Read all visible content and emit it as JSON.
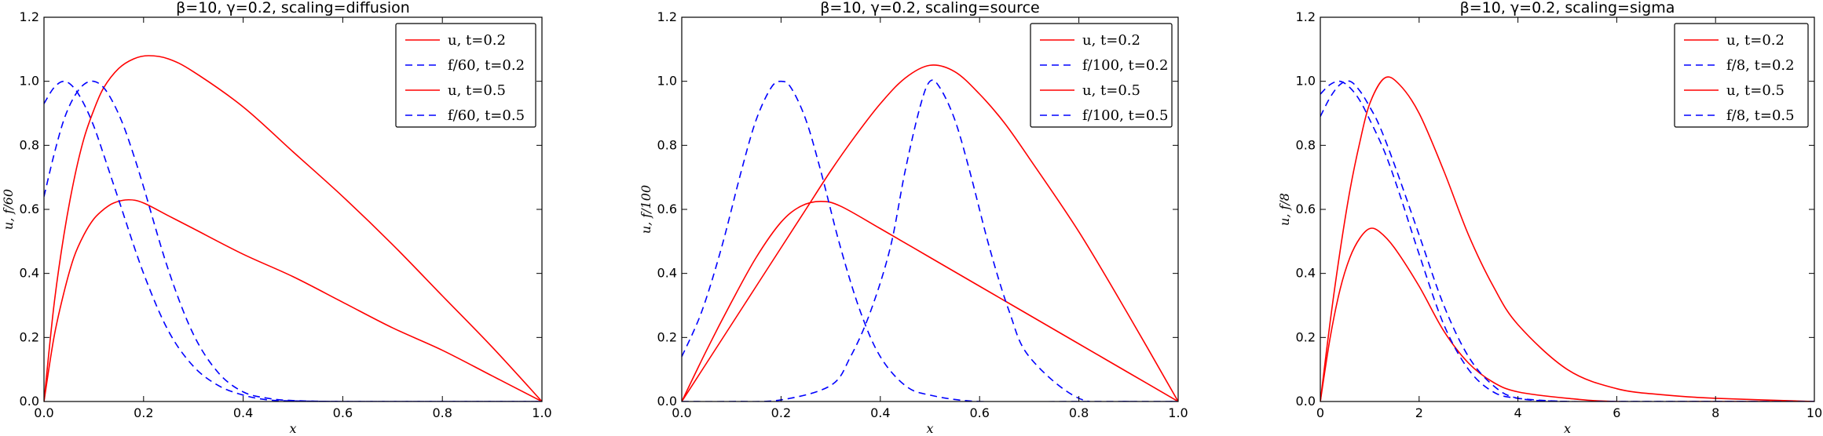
{
  "figure": {
    "background": "#ffffff"
  },
  "chart_data": [
    {
      "type": "line",
      "title": "β=10, γ=0.2, scaling=diffusion",
      "xlabel": "x",
      "ylabel": "u, f/60",
      "xlim": [
        0,
        1.0
      ],
      "ylim": [
        0,
        1.2
      ],
      "xticks": [
        "0.0",
        "0.2",
        "0.4",
        "0.6",
        "0.8",
        "1.0"
      ],
      "xtick_values": [
        0,
        0.2,
        0.4,
        0.6,
        0.8,
        1.0
      ],
      "yticks": [
        "0.0",
        "0.2",
        "0.4",
        "0.6",
        "0.8",
        "1.0",
        "1.2"
      ],
      "ytick_values": [
        0,
        0.2,
        0.4,
        0.6,
        0.8,
        1.0,
        1.2
      ],
      "grid": false,
      "legend": "top-right",
      "series": [
        {
          "name": "u, t=0.2",
          "color": "#ff0000",
          "dash": "solid",
          "x": [
            0,
            0.02,
            0.04,
            0.06,
            0.08,
            0.1,
            0.12,
            0.14,
            0.17,
            0.2,
            0.25,
            0.3,
            0.4,
            0.5,
            0.6,
            0.7,
            0.8,
            0.9,
            1.0
          ],
          "y": [
            0,
            0.2,
            0.34,
            0.45,
            0.52,
            0.57,
            0.6,
            0.62,
            0.63,
            0.62,
            0.58,
            0.54,
            0.46,
            0.39,
            0.31,
            0.23,
            0.16,
            0.08,
            0
          ]
        },
        {
          "name": "f/60, t=0.2",
          "color": "#0000ff",
          "dash": "dashed",
          "x": [
            0,
            0.02,
            0.04,
            0.06,
            0.08,
            0.1,
            0.12,
            0.15,
            0.2,
            0.25,
            0.3,
            0.35,
            0.4,
            0.45,
            0.5,
            0.6,
            0.8,
            1.0
          ],
          "y": [
            0.93,
            0.98,
            1.0,
            0.98,
            0.93,
            0.86,
            0.77,
            0.63,
            0.4,
            0.22,
            0.11,
            0.05,
            0.02,
            0.005,
            0.002,
            0,
            0,
            0
          ]
        },
        {
          "name": "u, t=0.5",
          "color": "#ff0000",
          "dash": "solid",
          "x": [
            0,
            0.02,
            0.04,
            0.06,
            0.08,
            0.1,
            0.12,
            0.15,
            0.18,
            0.21,
            0.25,
            0.3,
            0.4,
            0.5,
            0.6,
            0.7,
            0.8,
            0.9,
            1.0
          ],
          "y": [
            0,
            0.3,
            0.52,
            0.69,
            0.82,
            0.91,
            0.98,
            1.04,
            1.07,
            1.08,
            1.07,
            1.03,
            0.92,
            0.78,
            0.64,
            0.49,
            0.33,
            0.17,
            0
          ]
        },
        {
          "name": "f/60, t=0.5",
          "color": "#0000ff",
          "dash": "dashed",
          "x": [
            0,
            0.02,
            0.04,
            0.06,
            0.08,
            0.1,
            0.12,
            0.14,
            0.16,
            0.18,
            0.2,
            0.25,
            0.3,
            0.35,
            0.4,
            0.45,
            0.5,
            0.6,
            0.8,
            1.0
          ],
          "y": [
            0.64,
            0.77,
            0.88,
            0.95,
            0.99,
            1.0,
            0.98,
            0.93,
            0.86,
            0.77,
            0.67,
            0.41,
            0.21,
            0.09,
            0.03,
            0.01,
            0.003,
            0,
            0,
            0
          ]
        }
      ]
    },
    {
      "type": "line",
      "title": "β=10, γ=0.2, scaling=source",
      "xlabel": "x",
      "ylabel": "u, f/100",
      "xlim": [
        0,
        1.0
      ],
      "ylim": [
        0,
        1.2
      ],
      "xticks": [
        "0.0",
        "0.2",
        "0.4",
        "0.6",
        "0.8",
        "1.0"
      ],
      "xtick_values": [
        0,
        0.2,
        0.4,
        0.6,
        0.8,
        1.0
      ],
      "yticks": [
        "0.0",
        "0.2",
        "0.4",
        "0.6",
        "0.8",
        "1.0",
        "1.2"
      ],
      "ytick_values": [
        0,
        0.2,
        0.4,
        0.6,
        0.8,
        1.0,
        1.2
      ],
      "grid": false,
      "legend": "top-right",
      "series": [
        {
          "name": "u, t=0.2",
          "color": "#ff0000",
          "dash": "solid",
          "x": [
            0,
            0.05,
            0.1,
            0.15,
            0.2,
            0.24,
            0.28,
            0.32,
            0.4,
            0.5,
            0.6,
            0.7,
            0.8,
            0.9,
            1.0
          ],
          "y": [
            0,
            0.16,
            0.31,
            0.45,
            0.56,
            0.61,
            0.625,
            0.61,
            0.54,
            0.45,
            0.36,
            0.27,
            0.18,
            0.09,
            0
          ]
        },
        {
          "name": "f/100, t=0.2",
          "color": "#0000ff",
          "dash": "dashed",
          "x": [
            0,
            0.04,
            0.08,
            0.12,
            0.15,
            0.18,
            0.2,
            0.22,
            0.25,
            0.28,
            0.32,
            0.36,
            0.4,
            0.45,
            0.5,
            0.6,
            0.8,
            1.0
          ],
          "y": [
            0.14,
            0.28,
            0.48,
            0.72,
            0.88,
            0.98,
            1.0,
            0.98,
            0.88,
            0.72,
            0.48,
            0.28,
            0.14,
            0.05,
            0.02,
            0,
            0,
            0
          ]
        },
        {
          "name": "u, t=0.5",
          "color": "#ff0000",
          "dash": "solid",
          "x": [
            0,
            0.05,
            0.1,
            0.15,
            0.2,
            0.25,
            0.3,
            0.35,
            0.4,
            0.45,
            0.5,
            0.55,
            0.6,
            0.65,
            0.7,
            0.8,
            0.9,
            1.0
          ],
          "y": [
            0,
            0.12,
            0.24,
            0.36,
            0.48,
            0.6,
            0.72,
            0.83,
            0.93,
            1.01,
            1.05,
            1.03,
            0.96,
            0.87,
            0.76,
            0.53,
            0.27,
            0
          ]
        },
        {
          "name": "f/100, t=0.5",
          "color": "#0000ff",
          "dash": "dashed",
          "x": [
            0,
            0.1,
            0.2,
            0.3,
            0.34,
            0.38,
            0.42,
            0.45,
            0.48,
            0.5,
            0.52,
            0.55,
            0.58,
            0.62,
            0.66,
            0.7,
            0.8,
            0.9,
            1.0
          ],
          "y": [
            0,
            0,
            0.005,
            0.05,
            0.14,
            0.28,
            0.48,
            0.72,
            0.92,
            1.0,
            0.98,
            0.88,
            0.72,
            0.48,
            0.28,
            0.14,
            0.01,
            0,
            0
          ]
        }
      ]
    },
    {
      "type": "line",
      "title": "β=10, γ=0.2, scaling=sigma",
      "xlabel": "x",
      "ylabel": "u, f/8",
      "xlim": [
        0,
        10
      ],
      "ylim": [
        0,
        1.2
      ],
      "xticks": [
        "0",
        "2",
        "4",
        "6",
        "8",
        "10"
      ],
      "xtick_values": [
        0,
        2,
        4,
        6,
        8,
        10
      ],
      "yticks": [
        "0.0",
        "0.2",
        "0.4",
        "0.6",
        "0.8",
        "1.0",
        "1.2"
      ],
      "ytick_values": [
        0,
        0.2,
        0.4,
        0.6,
        0.8,
        1.0,
        1.2
      ],
      "grid": false,
      "legend": "top-right",
      "series": [
        {
          "name": "u, t=0.2",
          "color": "#ff0000",
          "dash": "solid",
          "x": [
            0,
            0.2,
            0.4,
            0.6,
            0.8,
            1.0,
            1.2,
            1.5,
            2.0,
            2.5,
            3.0,
            3.5,
            4.0,
            5.0,
            6.0,
            8.0,
            10.0
          ],
          "y": [
            0,
            0.2,
            0.35,
            0.45,
            0.51,
            0.54,
            0.53,
            0.48,
            0.36,
            0.22,
            0.12,
            0.06,
            0.03,
            0.01,
            0,
            0,
            0
          ]
        },
        {
          "name": "f/8, t=0.2",
          "color": "#0000ff",
          "dash": "dashed",
          "x": [
            0,
            0.2,
            0.4,
            0.6,
            0.8,
            1.0,
            1.2,
            1.5,
            2.0,
            2.5,
            3.0,
            3.5,
            4.0,
            5.0,
            6.0,
            8.0,
            10.0
          ],
          "y": [
            0.89,
            0.95,
            0.99,
            1.0,
            0.97,
            0.92,
            0.86,
            0.74,
            0.52,
            0.3,
            0.14,
            0.05,
            0.01,
            0,
            0,
            0,
            0
          ]
        },
        {
          "name": "u, t=0.5",
          "color": "#ff0000",
          "dash": "solid",
          "x": [
            0,
            0.2,
            0.4,
            0.6,
            0.8,
            1.0,
            1.3,
            1.6,
            2.0,
            2.5,
            3.0,
            3.5,
            4.0,
            5.0,
            6.0,
            7.0,
            8.0,
            10.0
          ],
          "y": [
            0,
            0.25,
            0.47,
            0.66,
            0.81,
            0.93,
            1.01,
            0.99,
            0.9,
            0.72,
            0.52,
            0.36,
            0.24,
            0.1,
            0.04,
            0.02,
            0.01,
            0
          ]
        },
        {
          "name": "f/8, t=0.5",
          "color": "#0000ff",
          "dash": "dashed",
          "x": [
            0,
            0.2,
            0.4,
            0.6,
            0.8,
            1.0,
            1.3,
            1.6,
            2.0,
            2.5,
            3.0,
            3.5,
            4.0,
            5.0,
            6.0,
            8.0,
            10.0
          ],
          "y": [
            0.96,
            0.99,
            1.0,
            0.98,
            0.94,
            0.88,
            0.78,
            0.65,
            0.46,
            0.24,
            0.1,
            0.03,
            0.01,
            0,
            0,
            0,
            0
          ]
        }
      ]
    }
  ]
}
